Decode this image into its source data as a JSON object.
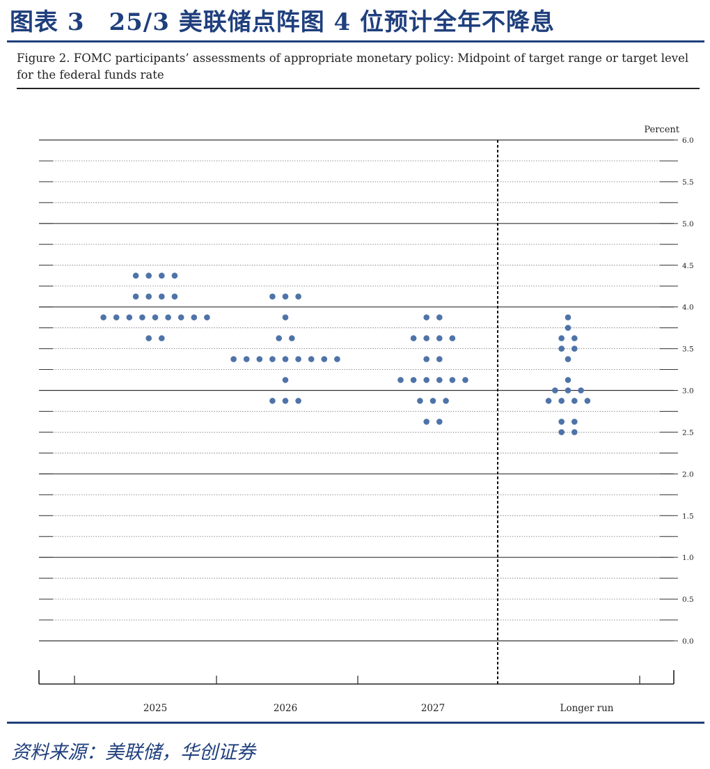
{
  "header": {
    "title": "图表 3　25/3 美联储点阵图 4 位预计全年不降息"
  },
  "figure": {
    "caption": "Figure 2.  FOMC participants’ assessments of appropriate monetary policy:  Midpoint of target range or target level for the federal funds rate"
  },
  "source": "资料来源：美联储，华创证券",
  "colors": {
    "accent": "#1f3f7d",
    "dot": "#4e73a8"
  },
  "chart_data": {
    "type": "scatter",
    "unit_label": "Percent",
    "categories": [
      "2025",
      "2026",
      "2027",
      "Longer run"
    ],
    "ylim": [
      0,
      6
    ],
    "yticks": [
      "0.0",
      "0.5",
      "1.0",
      "1.5",
      "2.0",
      "2.5",
      "3.0",
      "3.5",
      "4.0",
      "4.5",
      "5.0",
      "5.5",
      "6.0"
    ],
    "grid": "dotted minor lines every 0.25, solid at every whole percent",
    "separator": "dashed vertical line between 2027 and Longer run",
    "dots": [
      {
        "category": "2025",
        "rates": [
          {
            "y": 4.375,
            "n": 4
          },
          {
            "y": 4.125,
            "n": 4
          },
          {
            "y": 3.875,
            "n": 9
          },
          {
            "y": 3.625,
            "n": 2
          }
        ]
      },
      {
        "category": "2026",
        "rates": [
          {
            "y": 4.125,
            "n": 3
          },
          {
            "y": 3.875,
            "n": 1
          },
          {
            "y": 3.625,
            "n": 2
          },
          {
            "y": 3.375,
            "n": 9
          },
          {
            "y": 3.125,
            "n": 1
          },
          {
            "y": 2.875,
            "n": 3
          }
        ]
      },
      {
        "category": "2027",
        "rates": [
          {
            "y": 3.875,
            "n": 2
          },
          {
            "y": 3.625,
            "n": 4
          },
          {
            "y": 3.375,
            "n": 2
          },
          {
            "y": 3.125,
            "n": 6
          },
          {
            "y": 2.875,
            "n": 3
          },
          {
            "y": 2.625,
            "n": 2
          }
        ]
      },
      {
        "category": "Longer run",
        "rates": [
          {
            "y": 3.875,
            "n": 1
          },
          {
            "y": 3.75,
            "n": 1
          },
          {
            "y": 3.625,
            "n": 2
          },
          {
            "y": 3.5,
            "n": 2
          },
          {
            "y": 3.375,
            "n": 1
          },
          {
            "y": 3.125,
            "n": 1
          },
          {
            "y": 3.0,
            "n": 3
          },
          {
            "y": 2.875,
            "n": 4
          },
          {
            "y": 2.625,
            "n": 2
          },
          {
            "y": 2.5,
            "n": 2
          }
        ]
      }
    ]
  }
}
